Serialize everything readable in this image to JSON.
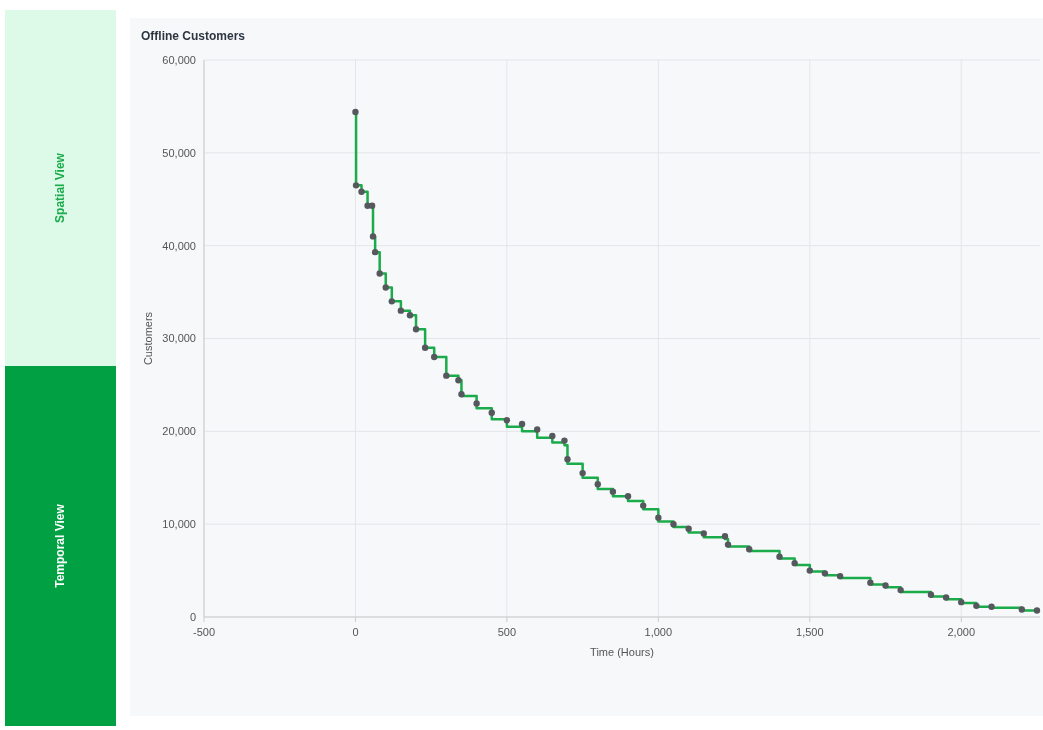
{
  "chart_data": {
    "type": "step",
    "title": "Offline Customers",
    "xlabel": "Time (Hours)",
    "ylabel": "Customers",
    "xlim": [
      -500,
      2260
    ],
    "xticks": [
      {
        "value": -500,
        "label": "-500"
      },
      0,
      {
        "value": 500,
        "label": "500"
      },
      {
        "value": 1000,
        "label": "1,000"
      },
      {
        "value": 1500,
        "label": "1,500"
      },
      {
        "value": 2000,
        "label": "2,000"
      }
    ],
    "ylim": [
      0,
      60000
    ],
    "yticks": [
      0,
      {
        "value": 10000,
        "label": "10,000"
      },
      {
        "value": 20000,
        "label": "20,000"
      },
      {
        "value": 30000,
        "label": "30,000"
      },
      {
        "value": 40000,
        "label": "40,000"
      },
      {
        "value": 50000,
        "label": "50,000"
      },
      {
        "value": 60000,
        "label": "60,000"
      }
    ],
    "grid": true,
    "annotations": [
      "Spatial View",
      "Temporal View"
    ],
    "series": [
      {
        "color": "#1aab4a",
        "x": [
          0,
          2,
          20,
          40,
          55,
          58,
          65,
          80,
          100,
          120,
          150,
          180,
          200,
          230,
          260,
          300,
          340,
          350,
          400,
          450,
          500,
          550,
          600,
          650,
          690,
          700,
          750,
          800,
          850,
          900,
          950,
          1000,
          1050,
          1100,
          1150,
          1220,
          1230,
          1300,
          1400,
          1450,
          1500,
          1550,
          1600,
          1700,
          1750,
          1800,
          1900,
          1950,
          2000,
          2050,
          2100,
          2200,
          2250
        ],
        "values": [
          54400,
          46500,
          45800,
          44300,
          44300,
          41000,
          39300,
          37000,
          35500,
          34000,
          33000,
          32500,
          31000,
          29000,
          28000,
          26000,
          25500,
          23800,
          22500,
          21300,
          20500,
          20000,
          19300,
          18800,
          18500,
          16500,
          15000,
          13800,
          13000,
          12500,
          11600,
          10300,
          9700,
          9100,
          8600,
          8400,
          7600,
          7100,
          6300,
          5600,
          4900,
          4500,
          4200,
          3500,
          3200,
          2700,
          2200,
          1900,
          1500,
          1100,
          1000,
          700,
          600
        ]
      },
      {
        "type": "scatter",
        "color": "#55595e",
        "marker": "circle",
        "x": [
          0,
          2,
          20,
          40,
          55,
          58,
          65,
          80,
          100,
          120,
          150,
          180,
          200,
          230,
          260,
          300,
          340,
          350,
          400,
          450,
          500,
          550,
          600,
          650,
          690,
          700,
          750,
          800,
          850,
          900,
          950,
          1000,
          1050,
          1100,
          1150,
          1220,
          1230,
          1300,
          1400,
          1450,
          1500,
          1550,
          1600,
          1700,
          1750,
          1800,
          1900,
          1950,
          2000,
          2050,
          2100,
          2200,
          2250
        ],
        "values": [
          54400,
          46500,
          45800,
          44300,
          44300,
          41000,
          39300,
          37000,
          35500,
          34000,
          33000,
          32500,
          31000,
          29000,
          28000,
          26000,
          25500,
          24000,
          23000,
          22000,
          21200,
          20800,
          20200,
          19500,
          19000,
          17000,
          15500,
          14300,
          13500,
          13000,
          12000,
          10700,
          10000,
          9500,
          9000,
          8700,
          7800,
          7300,
          6500,
          5800,
          5000,
          4700,
          4400,
          3700,
          3400,
          2900,
          2400,
          2100,
          1600,
          1200,
          1100,
          800,
          700
        ]
      }
    ]
  }
}
